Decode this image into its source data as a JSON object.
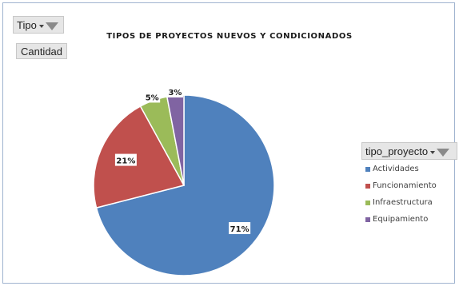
{
  "filter_button": {
    "label": "Tipo"
  },
  "value_button": {
    "label": "Cantidad"
  },
  "legend_field": {
    "label": "tipo_proyecto"
  },
  "chart_data": {
    "type": "pie",
    "title": "TIPOS DE PROYECTOS NUEVOS Y CONDICIONADOS",
    "categories": [
      "Actividades",
      "Funcionamiento",
      "Infraestructura",
      "Equipamiento"
    ],
    "values": [
      71,
      21,
      5,
      3
    ],
    "data_labels": [
      "71%",
      "21%",
      "5%",
      "3%"
    ],
    "colors": [
      "#4f81bd",
      "#c0504d",
      "#9bbb59",
      "#8064a2"
    ],
    "legend_position": "right"
  }
}
